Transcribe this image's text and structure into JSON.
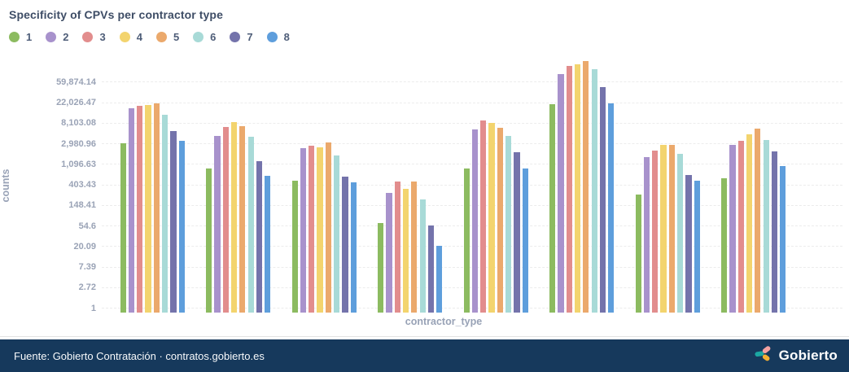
{
  "header": {
    "title": "Specificity of CPVs per contractor type"
  },
  "axes": {
    "y_label": "counts",
    "x_label": "contractor_type"
  },
  "chart_data": {
    "type": "bar",
    "y_scale": "log-e",
    "title": "Specificity of CPVs per contractor type",
    "xlabel": "contractor_type",
    "ylabel": "counts",
    "legend_position": "top-left",
    "grid": "horizontal-dashed",
    "y_ticks": [
      "1",
      "2.72",
      "7.39",
      "20.09",
      "54.6",
      "148.41",
      "403.43",
      "1,096.63",
      "2,980.96",
      "8,103.08",
      "22,026.47",
      "59,874.14"
    ],
    "ylim": [
      1,
      170000
    ],
    "n_groups": 8,
    "series": [
      {
        "name": "1",
        "color": "#8CBB60",
        "values": [
          3080,
          910,
          500,
          62,
          900,
          20800,
          250,
          550
        ]
      },
      {
        "name": "2",
        "color": "#A892CC",
        "values": [
          16500,
          4300,
          2450,
          275,
          5900,
          88000,
          1550,
          2870
        ]
      },
      {
        "name": "3",
        "color": "#E28D8D",
        "values": [
          18600,
          6840,
          2700,
          470,
          9300,
          131000,
          2140,
          3400
        ]
      },
      {
        "name": "4",
        "color": "#F3D46E",
        "values": [
          19700,
          8450,
          2500,
          330,
          8200,
          143000,
          2780,
          4740
        ]
      },
      {
        "name": "5",
        "color": "#EBA96C",
        "values": [
          21000,
          7120,
          3150,
          480,
          6560,
          170000,
          2870,
          6300
        ]
      },
      {
        "name": "6",
        "color": "#A8DAD7",
        "values": [
          12300,
          4140,
          1700,
          195,
          4360,
          111000,
          1830,
          3540
        ]
      },
      {
        "name": "7",
        "color": "#7473AB",
        "values": [
          5550,
          1290,
          610,
          56,
          1950,
          47200,
          645,
          2060
        ]
      },
      {
        "name": "8",
        "color": "#5E9EDC",
        "values": [
          3470,
          633,
          450,
          21,
          880,
          21600,
          500,
          1010
        ]
      }
    ]
  },
  "footer": {
    "source": "Fuente: Gobierto Contratación · contratos.gobierto.es",
    "brand": "Gobierto",
    "background": "#16395C",
    "logo_colors": {
      "teal": "#1BA7A2",
      "pink": "#F5A2A2",
      "amber": "#F4B033"
    }
  }
}
